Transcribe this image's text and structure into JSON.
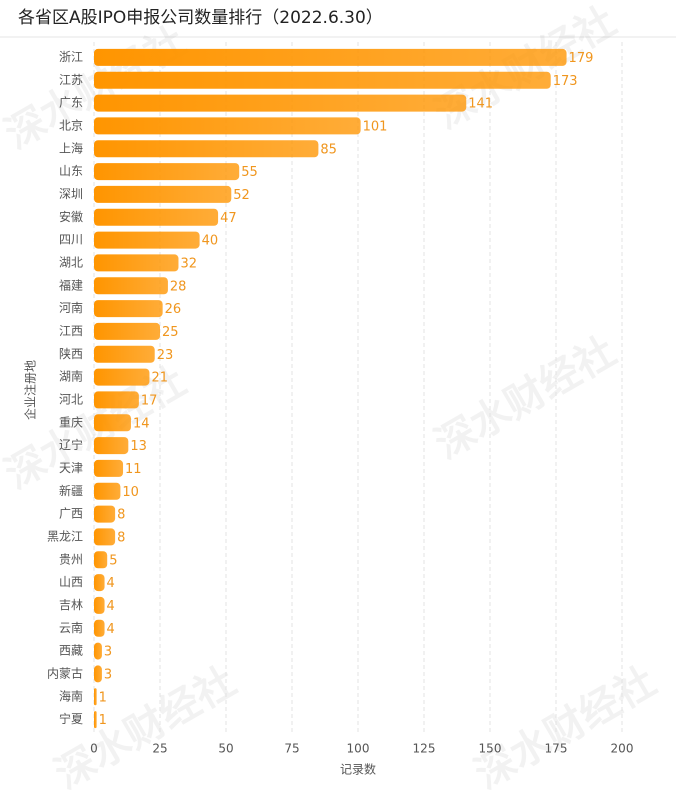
{
  "chart_data": {
    "type": "barh",
    "title": "各省区A股IPO申报公司数量排行（2022.6.30）",
    "x_label": "记录数",
    "y_label": "企业注册地",
    "watermark": "深水财经社",
    "categories": [
      "浙江",
      "江苏",
      "广东",
      "北京",
      "上海",
      "山东",
      "深圳",
      "安徽",
      "四川",
      "湖北",
      "福建",
      "河南",
      "江西",
      "陕西",
      "湖南",
      "河北",
      "重庆",
      "辽宁",
      "天津",
      "新疆",
      "广西",
      "黑龙江",
      "贵州",
      "山西",
      "吉林",
      "云南",
      "西藏",
      "内蒙古",
      "海南",
      "宁夏"
    ],
    "values": [
      179,
      173,
      141,
      101,
      85,
      55,
      52,
      47,
      40,
      32,
      28,
      26,
      25,
      23,
      21,
      17,
      14,
      13,
      11,
      10,
      8,
      8,
      5,
      4,
      4,
      4,
      3,
      3,
      1,
      1
    ],
    "color": "#ff9500",
    "label_color": "#f0961e",
    "xlim": [
      0,
      200
    ],
    "xticks": [
      0,
      25,
      50,
      75,
      100,
      125,
      150,
      175,
      200
    ],
    "grid": true
  }
}
